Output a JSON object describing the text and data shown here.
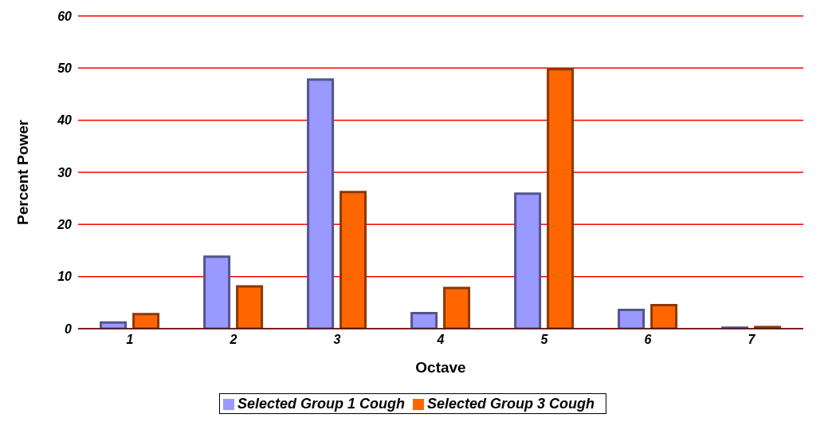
{
  "chart_data": {
    "type": "bar",
    "xlabel": "Octave",
    "ylabel": "Percent Power",
    "categories": [
      "1",
      "2",
      "3",
      "4",
      "5",
      "6",
      "7"
    ],
    "series": [
      {
        "name": "Selected Group 1 Cough",
        "color": "#9999ff",
        "values": [
          1.2,
          13.8,
          47.8,
          3.0,
          25.9,
          3.6,
          0.2
        ]
      },
      {
        "name": "Selected Group 3 Cough",
        "color": "#ff6600",
        "values": [
          2.8,
          8.1,
          26.2,
          7.8,
          49.8,
          4.5,
          0.3
        ]
      }
    ],
    "ylim": [
      0,
      60
    ],
    "yticks": [
      0,
      10,
      20,
      30,
      40,
      50,
      60
    ],
    "grid": "y",
    "legend": "bottom"
  }
}
